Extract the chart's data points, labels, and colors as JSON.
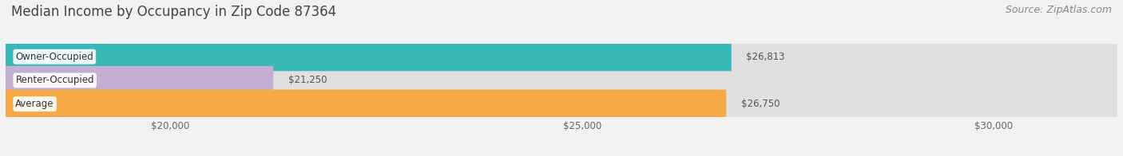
{
  "title": "Median Income by Occupancy in Zip Code 87364",
  "source": "Source: ZipAtlas.com",
  "categories": [
    "Owner-Occupied",
    "Renter-Occupied",
    "Average"
  ],
  "values": [
    26813,
    21250,
    26750
  ],
  "bar_colors": [
    "#38b8b8",
    "#c4aed4",
    "#f5a947"
  ],
  "value_labels": [
    "$26,813",
    "$21,250",
    "$26,750"
  ],
  "x_ticks": [
    20000,
    25000,
    30000
  ],
  "x_tick_labels": [
    "$20,000",
    "$25,000",
    "$30,000"
  ],
  "xmin": 18000,
  "xmax": 31500,
  "bar_height": 0.62,
  "background_color": "#f2f2f2",
  "bar_bg_color": "#e0e0e0",
  "title_fontsize": 12,
  "source_fontsize": 9,
  "cat_fontsize": 8.5,
  "value_fontsize": 8.5,
  "tick_fontsize": 8.5
}
